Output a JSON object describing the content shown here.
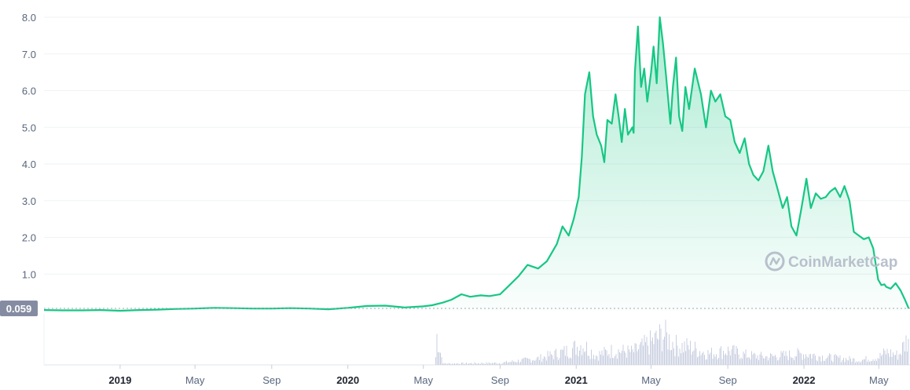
{
  "watermark": "CoinMarketCap",
  "current_price_label": "0.059",
  "colors": {
    "line": "#16c784",
    "area_top": "#16c784",
    "volume": "#c9cfe0",
    "grid": "#eff2f5",
    "label_bg": "#858ca2"
  },
  "icons": {
    "watermark_logo": "coinmarketcap-logo-icon"
  },
  "chart_data": {
    "type": "area",
    "title": "",
    "xlabel": "",
    "ylabel": "",
    "ylim": [
      0,
      8.0
    ],
    "xlim": [
      "2018-09-01",
      "2022-06-20"
    ],
    "grid": true,
    "y_ticks": [
      "1.0",
      "2.0",
      "3.0",
      "4.0",
      "5.0",
      "6.0",
      "7.0",
      "8.0"
    ],
    "x_ticks": [
      {
        "date": "2019-01-01",
        "label": "2019",
        "bold": true
      },
      {
        "date": "2019-05-01",
        "label": "May",
        "bold": false
      },
      {
        "date": "2019-09-01",
        "label": "Sep",
        "bold": false
      },
      {
        "date": "2020-01-01",
        "label": "2020",
        "bold": true
      },
      {
        "date": "2020-05-01",
        "label": "May",
        "bold": false
      },
      {
        "date": "2020-09-01",
        "label": "Sep",
        "bold": false
      },
      {
        "date": "2021-01-01",
        "label": "2021",
        "bold": true
      },
      {
        "date": "2021-05-01",
        "label": "May",
        "bold": false
      },
      {
        "date": "2021-09-01",
        "label": "Sep",
        "bold": false
      },
      {
        "date": "2022-01-01",
        "label": "2022",
        "bold": true
      },
      {
        "date": "2022-05-01",
        "label": "May",
        "bold": false
      }
    ],
    "series": [
      {
        "x": [
          "2018-09-01",
          "2018-10-01",
          "2018-11-01",
          "2018-12-01",
          "2019-01-01",
          "2019-02-01",
          "2019-03-01",
          "2019-04-01",
          "2019-05-01",
          "2019-06-01",
          "2019-07-01",
          "2019-08-01",
          "2019-09-01",
          "2019-10-01",
          "2019-11-01",
          "2019-12-01",
          "2020-01-01",
          "2020-02-01",
          "2020-03-01",
          "2020-04-01",
          "2020-05-01",
          "2020-05-15",
          "2020-06-01",
          "2020-06-15",
          "2020-07-01",
          "2020-07-15",
          "2020-08-01",
          "2020-08-15",
          "2020-09-01",
          "2020-09-15",
          "2020-10-01",
          "2020-10-15",
          "2020-11-01",
          "2020-11-15",
          "2020-12-01",
          "2020-12-10",
          "2020-12-20",
          "2020-12-28",
          "2021-01-05",
          "2021-01-10",
          "2021-01-15",
          "2021-01-22",
          "2021-01-28",
          "2021-02-03",
          "2021-02-10",
          "2021-02-15",
          "2021-02-20",
          "2021-02-27",
          "2021-03-05",
          "2021-03-10",
          "2021-03-15",
          "2021-03-20",
          "2021-03-25",
          "2021-04-01",
          "2021-04-03",
          "2021-04-05",
          "2021-04-10",
          "2021-04-15",
          "2021-04-20",
          "2021-04-25",
          "2021-05-01",
          "2021-05-05",
          "2021-05-10",
          "2021-05-15",
          "2021-05-20",
          "2021-05-25",
          "2021-06-01",
          "2021-06-05",
          "2021-06-10",
          "2021-06-15",
          "2021-06-20",
          "2021-06-25",
          "2021-07-01",
          "2021-07-10",
          "2021-07-20",
          "2021-07-28",
          "2021-08-05",
          "2021-08-12",
          "2021-08-20",
          "2021-08-28",
          "2021-09-05",
          "2021-09-12",
          "2021-09-20",
          "2021-09-28",
          "2021-10-05",
          "2021-10-12",
          "2021-10-20",
          "2021-10-28",
          "2021-11-05",
          "2021-11-12",
          "2021-11-20",
          "2021-11-28",
          "2021-12-05",
          "2021-12-12",
          "2021-12-20",
          "2021-12-28",
          "2022-01-05",
          "2022-01-12",
          "2022-01-20",
          "2022-01-28",
          "2022-02-05",
          "2022-02-12",
          "2022-02-20",
          "2022-02-28",
          "2022-03-07",
          "2022-03-15",
          "2022-03-22",
          "2022-03-30",
          "2022-04-07",
          "2022-04-15",
          "2022-04-22",
          "2022-04-30",
          "2022-05-05",
          "2022-05-10",
          "2022-05-13",
          "2022-05-20",
          "2022-05-28",
          "2022-06-05",
          "2022-06-12",
          "2022-06-18"
        ],
        "values": [
          0.02,
          0.01,
          0.01,
          0.02,
          0.0,
          0.02,
          0.03,
          0.05,
          0.06,
          0.08,
          0.07,
          0.06,
          0.06,
          0.07,
          0.06,
          0.04,
          0.08,
          0.13,
          0.14,
          0.09,
          0.12,
          0.15,
          0.22,
          0.3,
          0.45,
          0.38,
          0.42,
          0.4,
          0.45,
          0.68,
          0.95,
          1.25,
          1.15,
          1.35,
          1.82,
          2.3,
          2.05,
          2.5,
          3.1,
          4.2,
          5.9,
          6.5,
          5.3,
          4.8,
          4.5,
          4.05,
          5.2,
          5.1,
          5.9,
          5.3,
          4.6,
          5.5,
          4.8,
          5.0,
          4.85,
          6.5,
          7.75,
          6.1,
          6.6,
          5.7,
          6.5,
          7.2,
          6.2,
          8.0,
          7.3,
          6.4,
          5.1,
          6.1,
          6.9,
          5.3,
          4.9,
          6.1,
          5.5,
          6.6,
          5.9,
          5.0,
          6.0,
          5.7,
          5.9,
          5.3,
          5.2,
          4.6,
          4.3,
          4.7,
          4.0,
          3.7,
          3.55,
          3.8,
          4.5,
          3.8,
          3.3,
          2.8,
          3.1,
          2.3,
          2.05,
          2.8,
          3.6,
          2.8,
          3.2,
          3.05,
          3.1,
          3.25,
          3.35,
          3.1,
          3.4,
          3.0,
          2.15,
          2.05,
          1.95,
          2.0,
          1.7,
          0.85,
          0.7,
          0.72,
          0.65,
          0.6,
          0.75,
          0.55,
          0.3,
          0.06
        ]
      }
    ],
    "volume_profile": {
      "x": [
        "2018-09-01",
        "2020-05-20",
        "2020-05-21",
        "2020-06-01",
        "2020-09-01",
        "2020-11-01",
        "2020-12-20",
        "2021-01-10",
        "2021-02-01",
        "2021-03-01",
        "2021-04-01",
        "2021-05-05",
        "2021-05-20",
        "2021-06-10",
        "2021-07-01",
        "2021-08-01",
        "2021-09-01",
        "2021-10-01",
        "2021-11-01",
        "2021-12-01",
        "2022-01-01",
        "2022-02-01",
        "2022-03-01",
        "2022-04-01",
        "2022-05-01",
        "2022-05-12",
        "2022-06-01",
        "2022-06-18"
      ],
      "values": [
        0.0,
        0.0,
        1.0,
        0.04,
        0.06,
        0.2,
        0.45,
        0.65,
        0.3,
        0.45,
        0.4,
        0.75,
        0.95,
        0.6,
        0.55,
        0.35,
        0.45,
        0.3,
        0.25,
        0.3,
        0.35,
        0.25,
        0.2,
        0.15,
        0.25,
        0.4,
        0.3,
        0.9
      ]
    }
  }
}
